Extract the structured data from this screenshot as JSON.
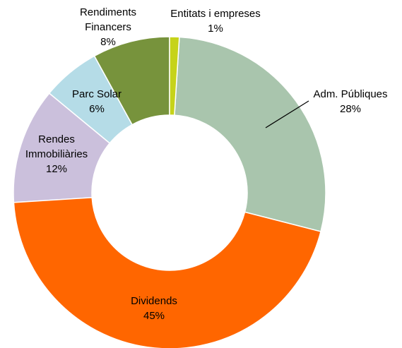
{
  "chart_data": {
    "type": "donut",
    "categories": [
      "Entitats i empreses",
      "Adm. Públiques",
      "Dividends",
      "Rendes Immobiliàries",
      "Parc Solar",
      "Rendiments Financers"
    ],
    "values": [
      1,
      28,
      45,
      12,
      6,
      8
    ],
    "value_labels": [
      "1%",
      "28%",
      "45%",
      "12%",
      "6%",
      "8%"
    ],
    "colors": [
      "#c6d31a",
      "#a9c5ad",
      "#ff6600",
      "#cbc0dc",
      "#b5dce7",
      "#77933c"
    ]
  }
}
